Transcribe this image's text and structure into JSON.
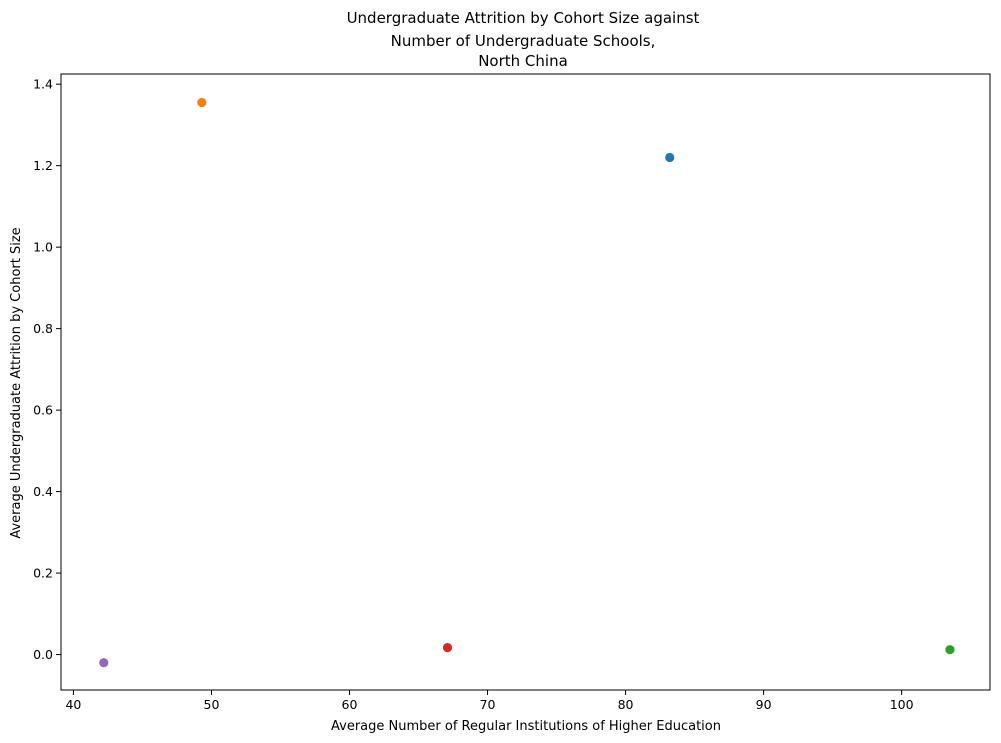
{
  "chart_data": {
    "type": "scatter",
    "title": [
      "Undergraduate Attrition by Cohort Size against",
      "Number of Undergraduate Schools,",
      "North China"
    ],
    "xlabel": "Average Number of Regular Institutions of Higher Education",
    "ylabel": "Average Undergraduate Attrition by Cohort Size",
    "xlim": [
      39.1,
      106.4
    ],
    "ylim": [
      -0.087,
      1.425
    ],
    "xticks": [
      40,
      50,
      60,
      70,
      80,
      90,
      100
    ],
    "yticks": [
      0.0,
      0.2,
      0.4,
      0.6,
      0.8,
      1.0,
      1.2,
      1.4
    ],
    "ytick_labels": [
      "0.0",
      "0.2",
      "0.4",
      "0.6",
      "0.8",
      "1.0",
      "1.2",
      "1.4"
    ],
    "grid": false,
    "points": [
      {
        "x": 83.2,
        "y": 1.22,
        "color": "#1f77b4"
      },
      {
        "x": 49.3,
        "y": 1.355,
        "color": "#ff7f0e"
      },
      {
        "x": 103.5,
        "y": 0.012,
        "color": "#2ca02c"
      },
      {
        "x": 67.1,
        "y": 0.017,
        "color": "#d62728"
      },
      {
        "x": 42.2,
        "y": -0.02,
        "color": "#9467bd"
      }
    ]
  }
}
